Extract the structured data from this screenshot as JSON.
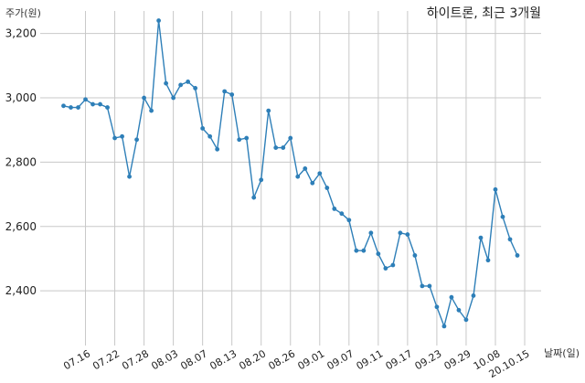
{
  "chart_data": {
    "type": "line",
    "title": "하이트론, 최근 3개월",
    "ylabel": "주가(원)",
    "xlabel": "날짜(일)",
    "ylim": [
      2230,
      3270
    ],
    "yticks": [
      2400,
      2600,
      2800,
      3000,
      3200
    ],
    "ytick_labels": [
      "2,400",
      "2,600",
      "2,800",
      "3,000",
      "3,200"
    ],
    "x_tick_labels": [
      "07.16",
      "07.22",
      "07.28",
      "08.03",
      "08.07",
      "08.13",
      "08.20",
      "08.26",
      "09.01",
      "09.07",
      "09.11",
      "09.17",
      "09.23",
      "09.29",
      "10.08",
      "20.10.15"
    ],
    "x_tick_index": [
      3,
      7,
      11,
      15,
      19,
      23,
      27,
      31,
      35,
      39,
      43,
      47,
      51,
      55,
      59,
      63
    ],
    "grid": true,
    "color": "#2e7fb8",
    "values": [
      2975,
      2970,
      2970,
      2995,
      2980,
      2980,
      2970,
      2875,
      2880,
      2755,
      2870,
      3000,
      2960,
      3240,
      3045,
      3000,
      3040,
      3050,
      3030,
      2905,
      2880,
      2840,
      3020,
      3010,
      2870,
      2875,
      2690,
      2745,
      2960,
      2845,
      2845,
      2875,
      2755,
      2780,
      2735,
      2765,
      2720,
      2655,
      2640,
      2620,
      2525,
      2525,
      2580,
      2515,
      2470,
      2480,
      2580,
      2575,
      2510,
      2415,
      2415,
      2350,
      2290,
      2380,
      2340,
      2310,
      2385,
      2565,
      2495,
      2715,
      2630,
      2560,
      2510
    ]
  }
}
